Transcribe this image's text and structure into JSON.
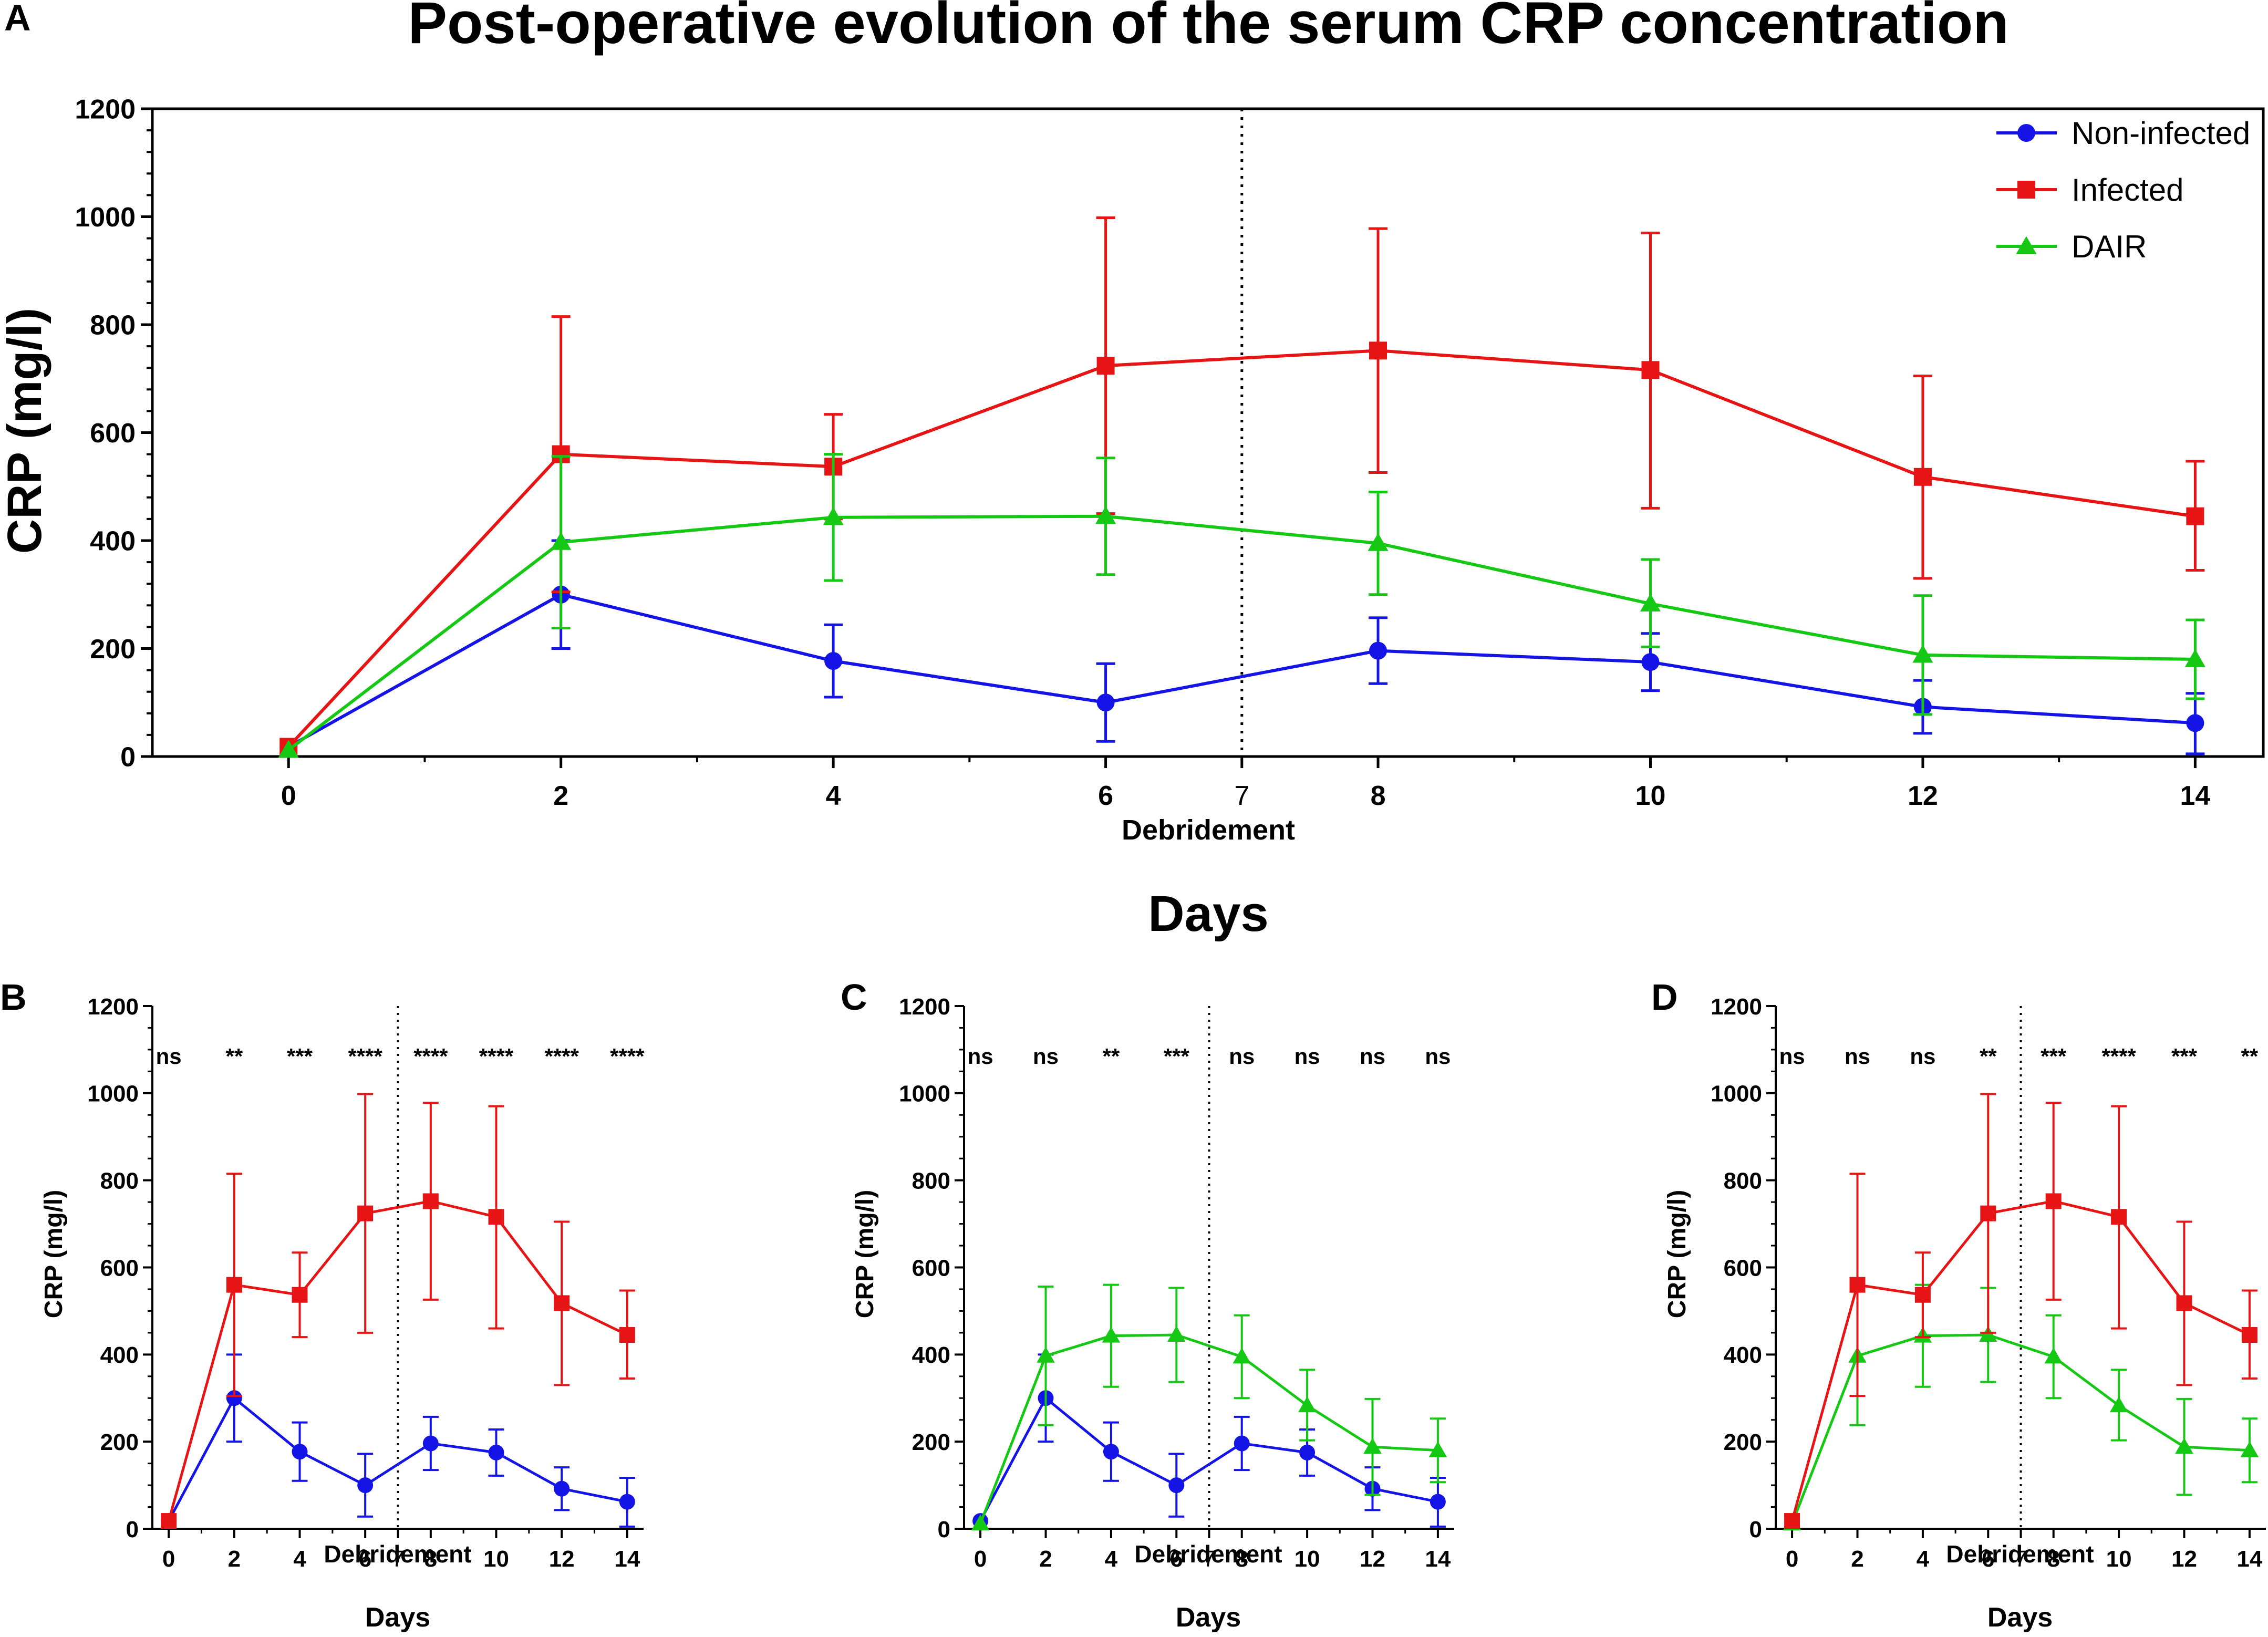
{
  "figure": {
    "colors": {
      "noninfected": "#1414e6",
      "infected": "#e61414",
      "dair": "#14c814",
      "axis": "#000000"
    },
    "panels": [
      {
        "letter": "A",
        "title": "Post-operative evolution of the serum CRP concentration",
        "ylabel": "CRP (mg/l)",
        "xlabel": "Days",
        "debridement_label": "Debridement",
        "debridement_day": "7"
      },
      {
        "letter": "B",
        "ylabel": "CRP (mg/l)",
        "xlabel": "Days",
        "debridement_label": "Debridement",
        "debridement_day": "7"
      },
      {
        "letter": "C",
        "ylabel": "CRP (mg/l)",
        "xlabel": "Days",
        "debridement_label": "Debridement",
        "debridement_day": "7"
      },
      {
        "letter": "D",
        "ylabel": "CRP (mg/l)",
        "xlabel": "Days",
        "debridement_label": "Debridement",
        "debridement_day": "7"
      }
    ]
  },
  "chart_data": [
    {
      "panel": "A",
      "type": "line",
      "title": "Post-operative evolution of the serum CRP concentration",
      "xlabel": "Days",
      "ylabel": "CRP (mg/l)",
      "x": [
        0,
        2,
        4,
        6,
        8,
        10,
        12,
        14
      ],
      "xticks": [
        0,
        2,
        4,
        6,
        7,
        8,
        10,
        12,
        14
      ],
      "xlim": [
        -1,
        14.5
      ],
      "ylim": [
        0,
        1200
      ],
      "yticks": [
        0,
        200,
        400,
        600,
        800,
        1000,
        1200
      ],
      "debridement_day": 7,
      "legend": [
        "Non-infected",
        "Infected",
        "DAIR"
      ],
      "legend_position": "top-right",
      "series": [
        {
          "name": "Non-infected",
          "key": "noninfected",
          "marker": "circle",
          "values": [
            18,
            300,
            177,
            100,
            196,
            175,
            92,
            62
          ],
          "err_low": [
            18,
            200,
            110,
            28,
            135,
            122,
            43,
            5
          ],
          "err_high": [
            18,
            400,
            244,
            172,
            257,
            228,
            141,
            117
          ]
        },
        {
          "name": "Infected",
          "key": "infected",
          "marker": "square",
          "values": [
            18,
            560,
            537,
            724,
            752,
            716,
            518,
            445
          ],
          "err_low": [
            18,
            305,
            440,
            450,
            526,
            460,
            330,
            345
          ],
          "err_high": [
            18,
            815,
            634,
            998,
            978,
            970,
            705,
            547
          ]
        },
        {
          "name": "DAIR",
          "key": "dair",
          "marker": "triangle",
          "values": [
            12,
            397,
            443,
            445,
            395,
            283,
            188,
            180
          ],
          "err_low": [
            12,
            238,
            326,
            337,
            300,
            203,
            78,
            107
          ],
          "err_high": [
            12,
            556,
            560,
            553,
            490,
            365,
            298,
            253
          ]
        }
      ]
    },
    {
      "panel": "B",
      "type": "line",
      "xlabel": "Days",
      "ylabel": "CRP (mg/l)",
      "x": [
        0,
        2,
        4,
        6,
        8,
        10,
        12,
        14
      ],
      "xticks": [
        0,
        2,
        4,
        6,
        7,
        8,
        10,
        12,
        14
      ],
      "xlim": [
        -0.5,
        14.5
      ],
      "ylim": [
        0,
        1200
      ],
      "yticks": [
        0,
        200,
        400,
        600,
        800,
        1000,
        1200
      ],
      "debridement_day": 7,
      "significance": [
        "ns",
        "**",
        "***",
        "****",
        "****",
        "****",
        "****",
        "****"
      ],
      "series": [
        {
          "name": "Non-infected",
          "key": "noninfected",
          "marker": "circle",
          "values": [
            18,
            300,
            177,
            100,
            196,
            175,
            92,
            62
          ],
          "err_low": [
            18,
            200,
            110,
            28,
            135,
            122,
            43,
            5
          ],
          "err_high": [
            18,
            400,
            244,
            172,
            257,
            228,
            141,
            117
          ]
        },
        {
          "name": "Infected",
          "key": "infected",
          "marker": "square",
          "values": [
            18,
            560,
            537,
            724,
            752,
            716,
            518,
            445
          ],
          "err_low": [
            18,
            305,
            440,
            450,
            526,
            460,
            330,
            345
          ],
          "err_high": [
            18,
            815,
            634,
            998,
            978,
            970,
            705,
            547
          ]
        }
      ]
    },
    {
      "panel": "C",
      "type": "line",
      "xlabel": "Days",
      "ylabel": "CRP (mg/l)",
      "x": [
        0,
        2,
        4,
        6,
        8,
        10,
        12,
        14
      ],
      "xticks": [
        0,
        2,
        4,
        6,
        7,
        8,
        10,
        12,
        14
      ],
      "xlim": [
        -0.5,
        14.5
      ],
      "ylim": [
        0,
        1200
      ],
      "yticks": [
        0,
        200,
        400,
        600,
        800,
        1000,
        1200
      ],
      "debridement_day": 7,
      "significance": [
        "ns",
        "ns",
        "**",
        "***",
        "ns",
        "ns",
        "ns",
        "ns"
      ],
      "series": [
        {
          "name": "Non-infected",
          "key": "noninfected",
          "marker": "circle",
          "values": [
            18,
            300,
            177,
            100,
            196,
            175,
            92,
            62
          ],
          "err_low": [
            18,
            200,
            110,
            28,
            135,
            122,
            43,
            5
          ],
          "err_high": [
            18,
            400,
            244,
            172,
            257,
            228,
            141,
            117
          ]
        },
        {
          "name": "DAIR",
          "key": "dair",
          "marker": "triangle",
          "values": [
            12,
            397,
            443,
            445,
            395,
            283,
            188,
            180
          ],
          "err_low": [
            12,
            238,
            326,
            337,
            300,
            203,
            78,
            107
          ],
          "err_high": [
            12,
            556,
            560,
            553,
            490,
            365,
            298,
            253
          ]
        }
      ]
    },
    {
      "panel": "D",
      "type": "line",
      "xlabel": "Days",
      "ylabel": "CRP (mg/l)",
      "x": [
        0,
        2,
        4,
        6,
        8,
        10,
        12,
        14
      ],
      "xticks": [
        0,
        2,
        4,
        6,
        7,
        8,
        10,
        12,
        14
      ],
      "xlim": [
        -0.5,
        14.5
      ],
      "ylim": [
        0,
        1200
      ],
      "yticks": [
        0,
        200,
        400,
        600,
        800,
        1000,
        1200
      ],
      "debridement_day": 7,
      "significance": [
        "ns",
        "ns",
        "ns",
        "**",
        "***",
        "****",
        "***",
        "**"
      ],
      "series": [
        {
          "name": "DAIR",
          "key": "dair",
          "marker": "triangle",
          "values": [
            12,
            397,
            443,
            445,
            395,
            283,
            188,
            180
          ],
          "err_low": [
            12,
            238,
            326,
            337,
            300,
            203,
            78,
            107
          ],
          "err_high": [
            12,
            556,
            560,
            553,
            490,
            365,
            298,
            253
          ]
        },
        {
          "name": "Infected",
          "key": "infected",
          "marker": "square",
          "values": [
            18,
            560,
            537,
            724,
            752,
            716,
            518,
            445
          ],
          "err_low": [
            18,
            305,
            440,
            450,
            526,
            460,
            330,
            345
          ],
          "err_high": [
            18,
            815,
            634,
            998,
            978,
            970,
            705,
            547
          ]
        }
      ]
    }
  ]
}
